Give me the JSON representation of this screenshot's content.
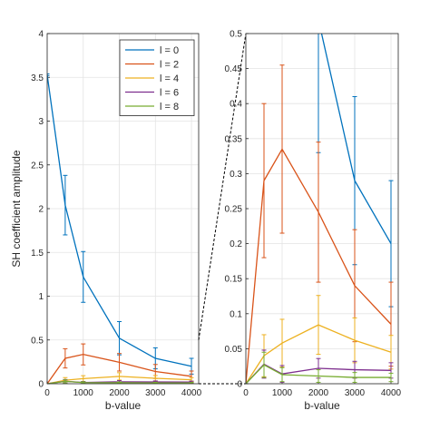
{
  "chart_data": [
    {
      "type": "line",
      "panel": "left",
      "xlabel": "b-value",
      "ylabel": "SH coefficient amplitude",
      "xlim": [
        0,
        4200
      ],
      "ylim": [
        0,
        4
      ],
      "xticks": [
        "0",
        "1000",
        "2000",
        "3000",
        "4000"
      ],
      "xtick_values": [
        0,
        1000,
        2000,
        3000,
        4000
      ],
      "yticks": [
        "0",
        "0.5",
        "1",
        "1.5",
        "2",
        "2.5",
        "3",
        "3.5",
        "4"
      ],
      "ytick_values": [
        0,
        0.5,
        1,
        1.5,
        2,
        2.5,
        3,
        3.5,
        4
      ],
      "grid": true,
      "legend_position": "top-right",
      "x": [
        0,
        500,
        1000,
        2000,
        3000,
        4000
      ],
      "series": [
        {
          "name": "l = 0",
          "color": "#0072BD",
          "values": [
            3.53,
            2.04,
            1.22,
            0.52,
            0.29,
            0.2
          ],
          "err": [
            0.01,
            0.34,
            0.29,
            0.19,
            0.12,
            0.09
          ]
        },
        {
          "name": "l = 2",
          "color": "#D95319",
          "values": [
            0,
            0.29,
            0.335,
            0.245,
            0.14,
            0.085
          ],
          "err": [
            0,
            0.11,
            0.12,
            0.1,
            0.08,
            0.06
          ]
        },
        {
          "name": "l = 4",
          "color": "#EDB120",
          "values": [
            0,
            0.04,
            0.058,
            0.084,
            0.062,
            0.045
          ],
          "err": [
            0,
            0.03,
            0.034,
            0.042,
            0.032,
            0.024
          ]
        },
        {
          "name": "l = 6",
          "color": "#7E2F8E",
          "values": [
            0,
            0.028,
            0.014,
            0.022,
            0.02,
            0.019
          ],
          "err": [
            0,
            0.02,
            0.012,
            0.014,
            0.012,
            0.011
          ]
        },
        {
          "name": "l = 8",
          "color": "#77AC30",
          "values": [
            0,
            0.027,
            0.013,
            0.011,
            0.009,
            0.009
          ],
          "err": [
            0,
            0.018,
            0.01,
            0.009,
            0.007,
            0.006
          ]
        }
      ]
    },
    {
      "type": "line",
      "panel": "right",
      "xlabel": "b-value",
      "xlim": [
        0,
        4200
      ],
      "ylim": [
        0,
        0.5
      ],
      "xticks": [
        "0",
        "1000",
        "2000",
        "3000",
        "4000"
      ],
      "xtick_values": [
        0,
        1000,
        2000,
        3000,
        4000
      ],
      "yticks": [
        "0",
        "0.05",
        "0.1",
        "0.15",
        "0.2",
        "0.25",
        "0.3",
        "0.35",
        "0.4",
        "0.45",
        "0.5"
      ],
      "ytick_values": [
        0,
        0.05,
        0.1,
        0.15,
        0.2,
        0.25,
        0.3,
        0.35,
        0.4,
        0.45,
        0.5
      ],
      "grid": true,
      "note": "zoom of left panel y-range 0 to 0.5"
    }
  ]
}
